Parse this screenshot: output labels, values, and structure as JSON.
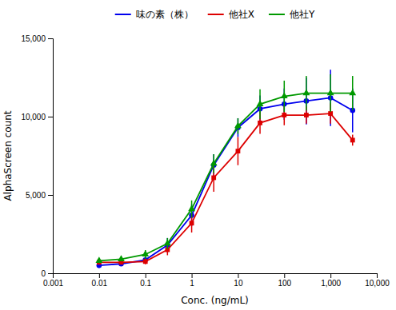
{
  "chart_data": {
    "type": "line",
    "xlabel": "Conc. (ng/mL)",
    "ylabel": "AlphaScreen count",
    "x": [
      0.01,
      0.03,
      0.1,
      0.3,
      1.0,
      3.0,
      10.0,
      30.0,
      100.0,
      300.0,
      1000.0,
      3000.0
    ],
    "series": [
      {
        "name": "味の素（株）",
        "color": "#0000ee",
        "marker": "circle",
        "values": [
          500,
          600,
          850,
          1800,
          3700,
          6900,
          9300,
          10500,
          10800,
          11000,
          11200,
          10400
        ],
        "errors": [
          150,
          130,
          200,
          450,
          700,
          700,
          600,
          850,
          1000,
          1500,
          1800,
          1400
        ]
      },
      {
        "name": "他社X",
        "color": "#dd0000",
        "marker": "square",
        "values": [
          700,
          700,
          750,
          1500,
          3200,
          6100,
          7800,
          9600,
          10100,
          10100,
          10200,
          8500
        ],
        "errors": [
          150,
          130,
          180,
          350,
          600,
          900,
          900,
          700,
          650,
          550,
          650,
          350
        ]
      },
      {
        "name": "他社Y",
        "color": "#009900",
        "marker": "triangle",
        "values": [
          800,
          900,
          1200,
          1900,
          4100,
          7000,
          9400,
          10800,
          11300,
          11500,
          11500,
          11500
        ],
        "errors": [
          150,
          130,
          280,
          350,
          550,
          600,
          500,
          950,
          1000,
          1100,
          1200,
          1100
        ]
      }
    ],
    "log": "x",
    "xlim": [
      0.001,
      10000
    ],
    "xticks": [
      0.001,
      0.01,
      0.1,
      1,
      10,
      100,
      {
        "value": 1000,
        "label": "1,000"
      },
      {
        "value": 10000,
        "label": "10,000"
      }
    ],
    "ylim": [
      0,
      15000
    ],
    "yticks": [
      0,
      {
        "value": 5000,
        "label": "5,000"
      },
      {
        "value": 10000,
        "label": "10,000"
      },
      {
        "value": 15000,
        "label": "15,000"
      }
    ],
    "legend": "top",
    "grid": false
  }
}
